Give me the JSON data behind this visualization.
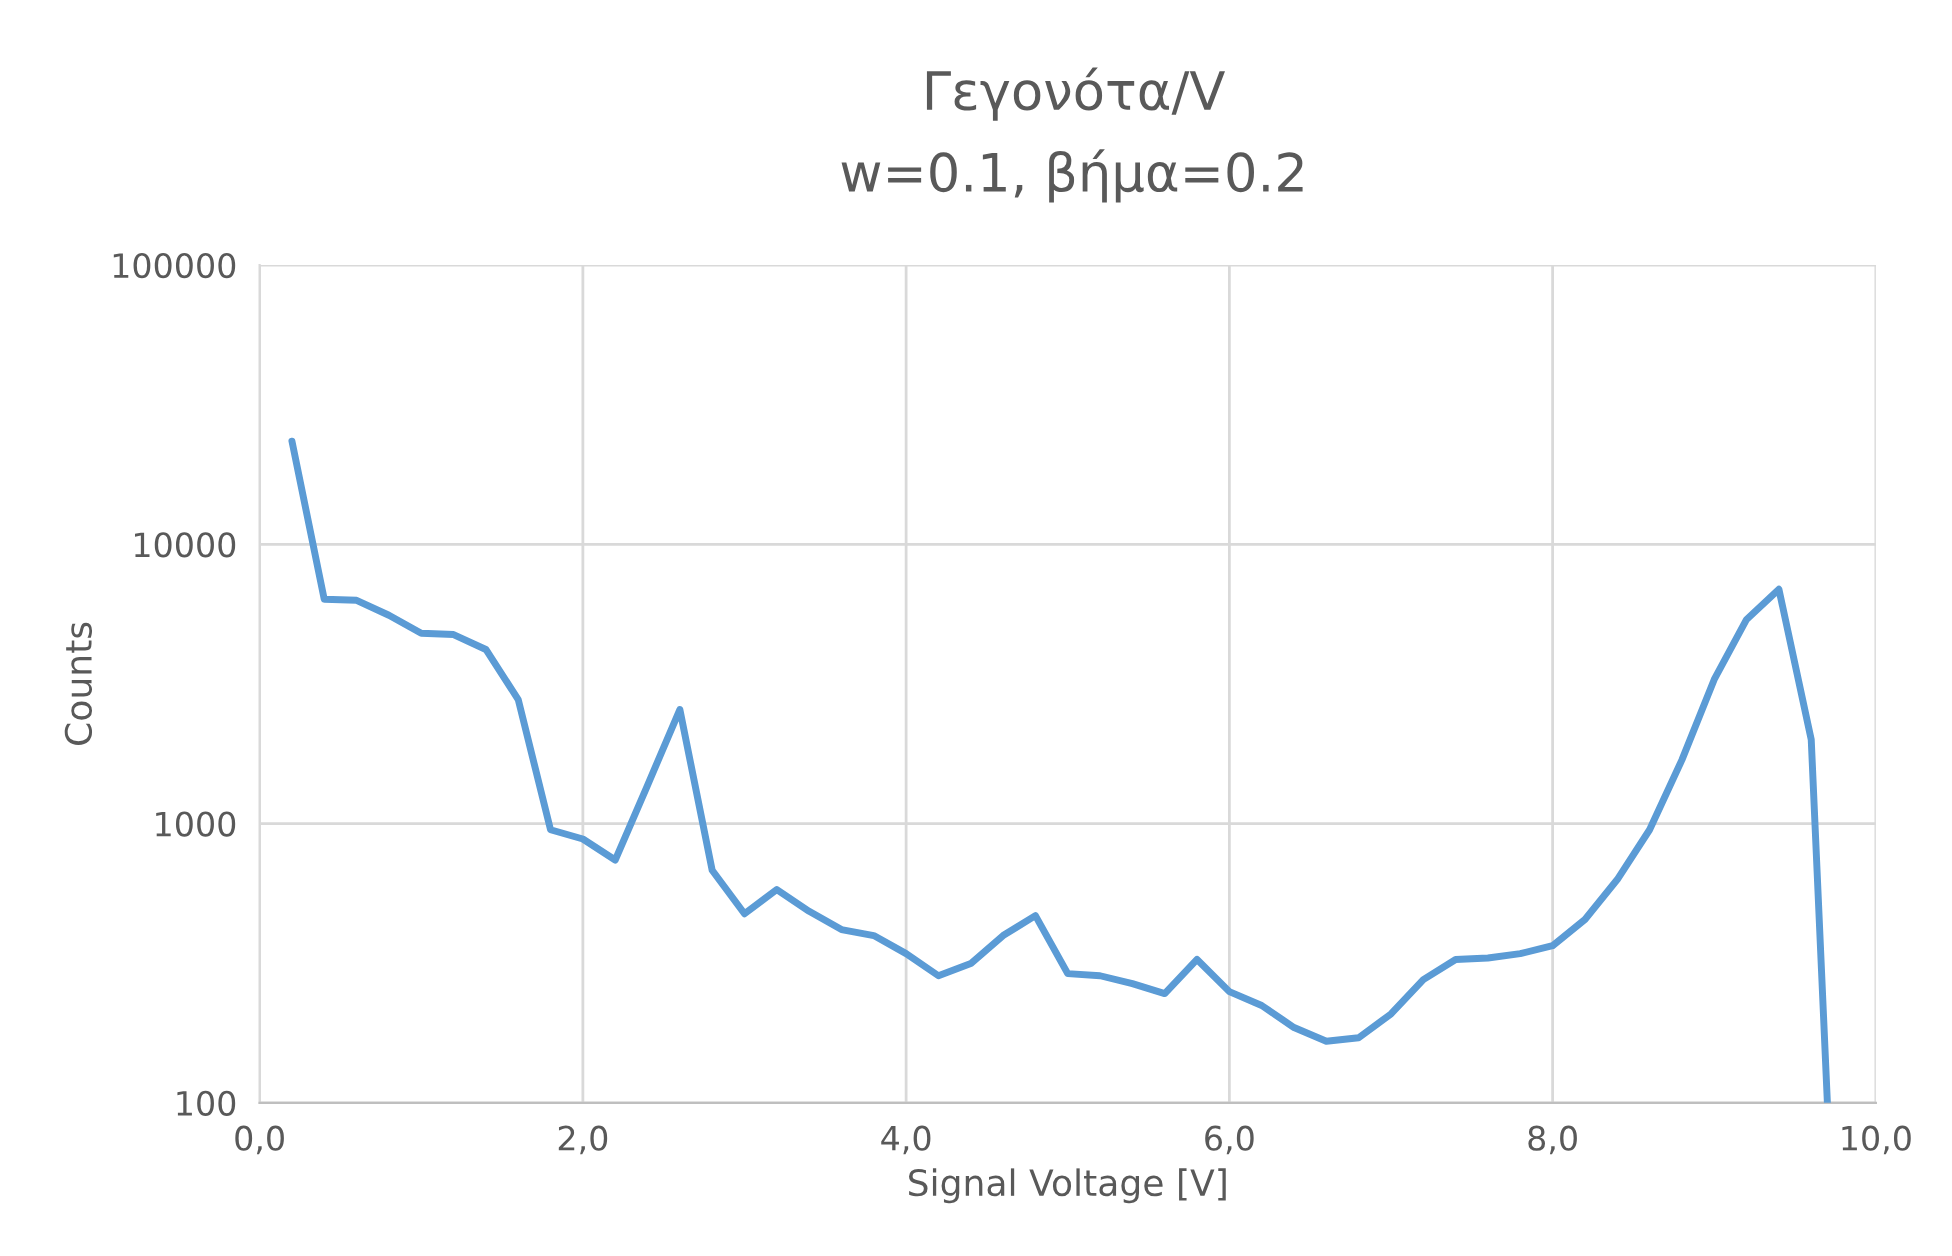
{
  "chart_data": {
    "type": "line",
    "title": "Γεγονότα/V",
    "subtitle": "w=0.1, βήμα=0.2",
    "xlabel": "Signal Voltage [V]",
    "ylabel": "Counts",
    "x": [
      0.2,
      0.4,
      0.6,
      0.8,
      1.0,
      1.2,
      1.4,
      1.6,
      1.8,
      2.0,
      2.2,
      2.4,
      2.6,
      2.8,
      3.0,
      3.2,
      3.4,
      3.6,
      3.8,
      4.0,
      4.2,
      4.4,
      4.6,
      4.8,
      5.0,
      5.2,
      5.4,
      5.6,
      5.8,
      6.0,
      6.2,
      6.4,
      6.6,
      6.8,
      7.0,
      7.2,
      7.4,
      7.6,
      7.8,
      8.0,
      8.2,
      8.4,
      8.6,
      8.8,
      9.0,
      9.2,
      9.4,
      9.6,
      9.7
    ],
    "series": [
      {
        "color": "#5b9bd5",
        "values": [
          23400,
          6350,
          6300,
          5570,
          4800,
          4750,
          4200,
          2780,
          950,
          880,
          740,
          1370,
          2560,
          680,
          475,
          580,
          485,
          417,
          397,
          342,
          285,
          315,
          397,
          468,
          290,
          285,
          267,
          246,
          326,
          250,
          223,
          186,
          166,
          171,
          208,
          276,
          326,
          330,
          342,
          365,
          453,
          630,
          950,
          1690,
          3280,
          5380,
          6900,
          2000,
          100
        ]
      }
    ],
    "log": "y",
    "xlim": [
      0,
      10
    ],
    "ylim": [
      100,
      100000
    ],
    "xticks": [
      {
        "value": 0,
        "label": "0,0"
      },
      {
        "value": 2,
        "label": "2,0"
      },
      {
        "value": 4,
        "label": "4,0"
      },
      {
        "value": 6,
        "label": "6,0"
      },
      {
        "value": 8,
        "label": "8,0"
      },
      {
        "value": 10,
        "label": "10,0"
      }
    ],
    "yticks": [
      100,
      1000,
      10000,
      100000
    ],
    "grid": true,
    "marker": "none",
    "line_style": "solid"
  }
}
